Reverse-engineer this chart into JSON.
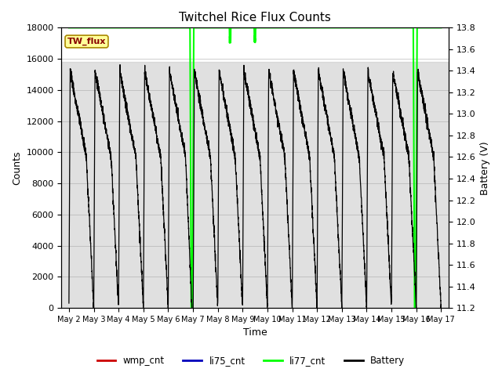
{
  "title": "Twitchel Rice Flux Counts",
  "xlabel": "Time",
  "ylabel_left": "Counts",
  "ylabel_right": "Battery (V)",
  "ylim_left": [
    0,
    18000
  ],
  "ylim_right": [
    11.2,
    13.8
  ],
  "yticks_left": [
    0,
    2000,
    4000,
    6000,
    8000,
    10000,
    12000,
    14000,
    16000,
    18000
  ],
  "yticks_right": [
    11.2,
    11.4,
    11.6,
    11.8,
    12.0,
    12.2,
    12.4,
    12.6,
    12.8,
    13.0,
    13.2,
    13.4,
    13.6,
    13.8
  ],
  "xtick_labels": [
    "May 2",
    "May 3",
    "May 4",
    "May 5",
    "May 6",
    "May 7",
    "May 8",
    "May 9",
    "May 10",
    "May 11",
    "May 12",
    "May 13",
    "May 14",
    "May 15",
    "May 16",
    "May 17"
  ],
  "xtick_positions": [
    1,
    2,
    3,
    4,
    5,
    6,
    7,
    8,
    9,
    10,
    11,
    12,
    13,
    14,
    15,
    16
  ],
  "shaded_ymin": 0,
  "shaded_ymax": 15800,
  "li77_color": "#00ff00",
  "li75_color": "#0000bb",
  "wmp_color": "#cc0000",
  "battery_color": "#000000",
  "background_color": "#ffffff",
  "title_fontsize": 11,
  "tw_flux_facecolor": "#ffff99",
  "tw_flux_edgecolor": "#aa8800",
  "tw_flux_textcolor": "#880000"
}
